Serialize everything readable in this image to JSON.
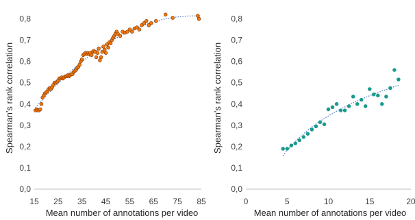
{
  "chart_data": [
    {
      "type": "scatter",
      "title": "",
      "xlabel": "Mean number of annotations per video",
      "ylabel": "Spearman's rank correlation",
      "xlim": [
        15,
        85
      ],
      "ylim": [
        0,
        0.85
      ],
      "x_ticks": [
        15,
        25,
        35,
        45,
        55,
        65,
        75,
        85
      ],
      "y_ticks": [
        0,
        0.1,
        0.2,
        0.3,
        0.4,
        0.5,
        0.6,
        0.7,
        0.8
      ],
      "x_tick_labels": [
        "15",
        "25",
        "35",
        "45",
        "55",
        "65",
        "75",
        "85"
      ],
      "y_tick_labels": [
        "0,0",
        "0,1",
        "0,2",
        "0,3",
        "0,4",
        "0,5",
        "0,6",
        "0,7",
        "0,8"
      ],
      "grid": false,
      "legend": "none",
      "marker_color": "#f07a10",
      "marker_edge_color": "#8b3a00",
      "trendline": {
        "type": "polynomial",
        "color": "#4472c4",
        "style": "dotted",
        "from": 15.5,
        "to": 84.5
      },
      "x": [
        15.5,
        16.0,
        16.5,
        17.0,
        17.5,
        18.0,
        18.5,
        19.0,
        19.5,
        20.0,
        20.5,
        21.0,
        21.5,
        22.0,
        22.5,
        23.0,
        23.5,
        24.0,
        24.5,
        25.0,
        25.5,
        26.0,
        26.5,
        27.0,
        27.5,
        28.0,
        28.5,
        29.0,
        29.5,
        30.0,
        30.5,
        31.0,
        31.5,
        32.0,
        32.5,
        33.0,
        33.5,
        34.0,
        34.5,
        35.0,
        35.5,
        36.0,
        36.5,
        37.0,
        37.5,
        38.0,
        38.5,
        39.0,
        39.5,
        40.0,
        40.5,
        41.0,
        41.5,
        42.0,
        42.5,
        43.0,
        43.5,
        44.0,
        44.5,
        45.0,
        45.5,
        46.0,
        46.5,
        47.0,
        47.5,
        48.0,
        48.5,
        49.0,
        49.5,
        50.0,
        51.0,
        52.0,
        53.0,
        54.0,
        55.0,
        56.0,
        57.0,
        58.0,
        59.0,
        60.0,
        61.0,
        62.0,
        63.0,
        64.0,
        66.0,
        70.0,
        73.0,
        83.5,
        84.0
      ],
      "y": [
        0.37,
        0.375,
        0.37,
        0.37,
        0.375,
        0.4,
        0.43,
        0.44,
        0.45,
        0.455,
        0.46,
        0.47,
        0.475,
        0.47,
        0.48,
        0.49,
        0.5,
        0.5,
        0.505,
        0.51,
        0.52,
        0.52,
        0.525,
        0.52,
        0.525,
        0.53,
        0.53,
        0.535,
        0.53,
        0.535,
        0.54,
        0.54,
        0.55,
        0.555,
        0.56,
        0.57,
        0.575,
        0.585,
        0.6,
        0.61,
        0.63,
        0.635,
        0.64,
        0.635,
        0.64,
        0.635,
        0.64,
        0.63,
        0.645,
        0.65,
        0.645,
        0.62,
        0.64,
        0.66,
        0.605,
        0.62,
        0.645,
        0.67,
        0.655,
        0.64,
        0.68,
        0.665,
        0.69,
        0.685,
        0.7,
        0.71,
        0.72,
        0.73,
        0.74,
        0.73,
        0.72,
        0.74,
        0.735,
        0.74,
        0.75,
        0.74,
        0.755,
        0.76,
        0.75,
        0.77,
        0.78,
        0.79,
        0.77,
        0.78,
        0.79,
        0.82,
        0.805,
        0.815,
        0.8
      ]
    },
    {
      "type": "scatter",
      "title": "",
      "xlabel": "Mean number of annotations per video",
      "ylabel": "Spearman's rank correlation",
      "xlim": [
        0,
        20
      ],
      "ylim": [
        0,
        0.85
      ],
      "x_ticks": [
        0,
        5,
        10,
        15,
        20
      ],
      "y_ticks": [
        0,
        0.1,
        0.2,
        0.3,
        0.4,
        0.5,
        0.6,
        0.7,
        0.8
      ],
      "x_tick_labels": [
        "0",
        "5",
        "10",
        "15",
        "20"
      ],
      "y_tick_labels": [
        "0,0",
        "0,1",
        "0,2",
        "0,3",
        "0,4",
        "0,5",
        "0,6",
        "0,7",
        "0,8"
      ],
      "grid": false,
      "legend": "none",
      "marker_color": "#1a9a8c",
      "marker_edge_color": "#1a9a8c",
      "trendline": {
        "type": "logarithmic",
        "color": "#4472c4",
        "style": "dotted",
        "from": 4.5,
        "to": 18.5
      },
      "x": [
        4.5,
        5.0,
        5.5,
        6.0,
        6.5,
        7.0,
        7.5,
        8.0,
        8.5,
        9.0,
        9.5,
        10.0,
        10.5,
        11.0,
        11.5,
        12.0,
        12.5,
        13.0,
        13.5,
        14.0,
        14.5,
        15.0,
        15.5,
        16.0,
        16.5,
        17.0,
        17.5,
        18.0,
        18.5
      ],
      "y": [
        0.19,
        0.19,
        0.205,
        0.215,
        0.23,
        0.245,
        0.26,
        0.28,
        0.295,
        0.315,
        0.305,
        0.375,
        0.385,
        0.4,
        0.37,
        0.37,
        0.39,
        0.435,
        0.4,
        0.42,
        0.39,
        0.47,
        0.445,
        0.44,
        0.4,
        0.435,
        0.475,
        0.56,
        0.515
      ]
    }
  ]
}
